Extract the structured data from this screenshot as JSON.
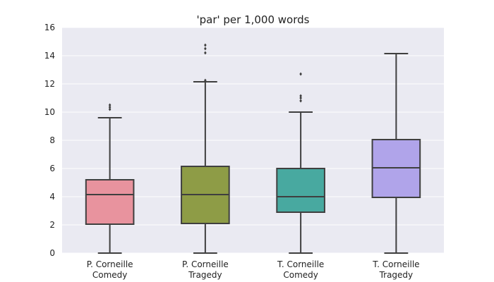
{
  "chart_data": {
    "type": "box",
    "title": "'par' per 1,000 words",
    "xlabel": "",
    "ylabel": "",
    "ylim": [
      0,
      16
    ],
    "yticks": [
      0,
      2,
      4,
      6,
      8,
      10,
      12,
      14,
      16
    ],
    "grid": true,
    "legend": "none",
    "background": "#EAEAF2",
    "categories": [
      {
        "line1": "P. Corneille",
        "line2": "Comedy"
      },
      {
        "line1": "P. Corneille",
        "line2": "Tragedy"
      },
      {
        "line1": "T. Corneille",
        "line2": "Comedy"
      },
      {
        "line1": "T. Corneille",
        "line2": "Tragedy"
      }
    ],
    "boxes": [
      {
        "color": "#E8939E",
        "whisker_low": 0,
        "q1": 2.05,
        "median": 4.15,
        "q3": 5.2,
        "whisker_high": 9.6,
        "outliers": [
          10.2,
          10.35,
          10.5
        ]
      },
      {
        "color": "#8E9C46",
        "whisker_low": 0,
        "q1": 2.1,
        "median": 4.15,
        "q3": 6.15,
        "whisker_high": 12.15,
        "outliers": [
          12.25,
          14.2,
          14.5,
          14.75
        ]
      },
      {
        "color": "#48A9A0",
        "whisker_low": 0,
        "q1": 2.9,
        "median": 4.0,
        "q3": 6.0,
        "whisker_high": 10.0,
        "outliers": [
          10.8,
          11.0,
          11.15,
          12.7
        ]
      },
      {
        "color": "#B0A4EA",
        "whisker_low": 0,
        "q1": 3.95,
        "median": 6.05,
        "q3": 8.05,
        "whisker_high": 14.15,
        "outliers": []
      }
    ]
  }
}
